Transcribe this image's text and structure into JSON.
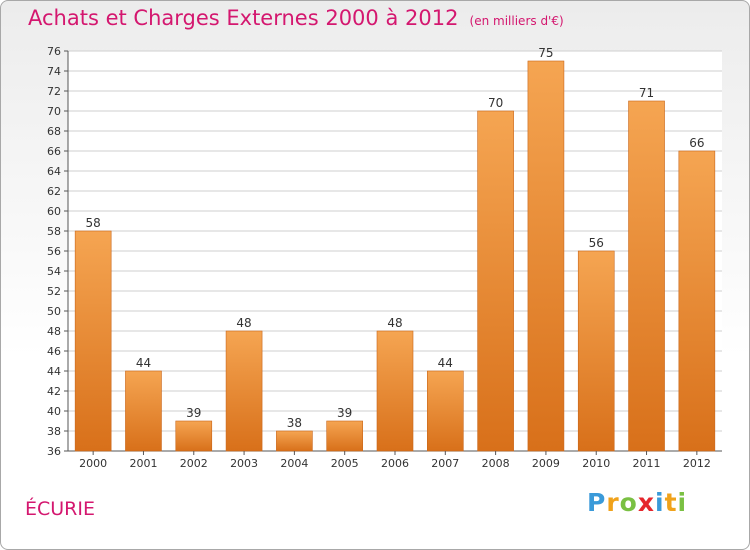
{
  "title": "Achats et Charges Externes 2000 à 2012",
  "unit": "(en milliers d'€)",
  "place": "ÉCURIE",
  "logo": {
    "letters": [
      "P",
      "r",
      "o",
      "x",
      "i",
      "t",
      "i"
    ],
    "colors": [
      "#3a9ad9",
      "#f0a21b",
      "#7ac043",
      "#e5262c",
      "#3a9ad9",
      "#f0a21b",
      "#7ac043"
    ]
  },
  "colors": {
    "title": "#d4176f",
    "bar_top": "#f5a552",
    "bar_bottom": "#d8701a",
    "grid": "#cfcfcf",
    "axis": "#555555"
  },
  "chart_data": {
    "type": "bar",
    "categories": [
      "2000",
      "2001",
      "2002",
      "2003",
      "2004",
      "2005",
      "2006",
      "2007",
      "2008",
      "2009",
      "2010",
      "2011",
      "2012"
    ],
    "values": [
      58,
      44,
      39,
      48,
      38,
      39,
      48,
      44,
      70,
      75,
      56,
      71,
      66
    ],
    "ylim": [
      36,
      76
    ],
    "yticks": [
      36,
      38,
      40,
      42,
      44,
      46,
      48,
      50,
      52,
      54,
      56,
      58,
      60,
      62,
      64,
      66,
      68,
      70,
      72,
      74,
      76
    ],
    "grid": true
  }
}
